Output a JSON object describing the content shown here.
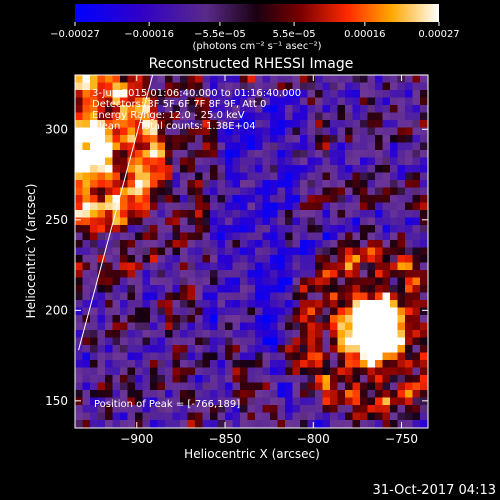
{
  "chart_data": {
    "type": "heatmap",
    "title": "Reconstructed RHESSI Image",
    "xlabel": "Heliocentric X (arcsec)",
    "ylabel": "Heliocentric Y (arcsec)",
    "xlim": [
      -935,
      -735
    ],
    "ylim": [
      135,
      330
    ],
    "x_ticks": [
      -900,
      -850,
      -800,
      -750
    ],
    "y_ticks": [
      150,
      200,
      250,
      300
    ],
    "x_tick_labels": [
      "−900",
      "−850",
      "−800",
      "−750"
    ],
    "y_tick_labels": [
      "150",
      "200",
      "250",
      "300"
    ],
    "colorbar": {
      "vmin": -0.00027,
      "vmax": 0.00027,
      "tick_values": [
        -0.00027,
        -0.00016,
        -5.5e-05,
        5.5e-05,
        0.00016,
        0.00027
      ],
      "tick_labels": [
        "−0.00027",
        "−0.00016",
        "−5.5e−05",
        "5.5e−05",
        "0.00016",
        "0.00027"
      ],
      "units_label": "(photons cm⁻² s⁻¹ asec⁻²)"
    },
    "annotations": [
      "3-Jun-2015 01:06:40.000 to 01:16:40.000",
      "Detectors: 3F 5F 6F 7F 8F 9F, Att 0",
      "Energy Range: 12.0 - 25.0 keV",
      "Clean      Total counts: 1.38E+04"
    ],
    "peak_label": "Position of Peak = [-766,189]",
    "peak": [
      -766,
      189
    ],
    "limb_line": [
      [
        -933,
        178
      ],
      [
        -891,
        330
      ]
    ]
  },
  "timestamp": "31-Oct-2017 04:13"
}
